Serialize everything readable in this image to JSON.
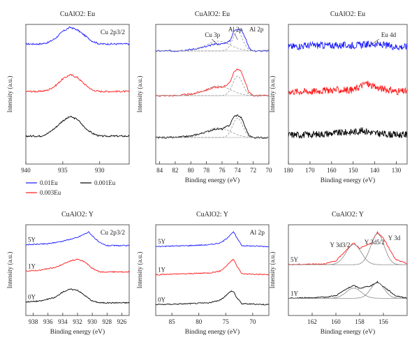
{
  "figure": {
    "ylabel": "Intensity (a.u.)",
    "xlabel": "Binding energy (eV)"
  },
  "legend": [
    {
      "label": "0.01Eu",
      "color": "#1a1aff"
    },
    {
      "label": "0.003Eu",
      "color": "#ff1a1a"
    },
    {
      "label": "0.001Eu",
      "color": "#000000"
    }
  ],
  "chart_data": [
    {
      "id": "p1",
      "type": "line",
      "title": "CuAlO2: Eu",
      "peak_label": "Cu 2p3/2",
      "xlim": [
        940,
        926
      ],
      "xticks": [
        940,
        935,
        930
      ],
      "show_xlabel": false,
      "series": [
        {
          "name": "0.01Eu",
          "color": "#1a1aff",
          "points": [
            [
              940,
              0.86
            ],
            [
              938,
              0.86
            ],
            [
              937,
              0.87
            ],
            [
              936,
              0.9
            ],
            [
              935,
              0.95
            ],
            [
              934,
              0.98
            ],
            [
              933,
              0.96
            ],
            [
              932,
              0.92
            ],
            [
              931,
              0.88
            ],
            [
              930,
              0.86
            ],
            [
              928,
              0.86
            ],
            [
              926,
              0.86
            ]
          ]
        },
        {
          "name": "0.003Eu",
          "color": "#ff1a1a",
          "points": [
            [
              940,
              0.52
            ],
            [
              938,
              0.52
            ],
            [
              937,
              0.53
            ],
            [
              936,
              0.56
            ],
            [
              935,
              0.61
            ],
            [
              934,
              0.64
            ],
            [
              933,
              0.62
            ],
            [
              932,
              0.57
            ],
            [
              931,
              0.53
            ],
            [
              930,
              0.52
            ],
            [
              928,
              0.52
            ],
            [
              926,
              0.52
            ]
          ]
        },
        {
          "name": "0.001Eu",
          "color": "#000000",
          "points": [
            [
              940,
              0.2
            ],
            [
              938,
              0.2
            ],
            [
              937,
              0.22
            ],
            [
              936,
              0.26
            ],
            [
              935,
              0.31
            ],
            [
              934,
              0.34
            ],
            [
              933,
              0.32
            ],
            [
              932,
              0.26
            ],
            [
              931,
              0.22
            ],
            [
              930,
              0.2
            ],
            [
              928,
              0.2
            ],
            [
              926,
              0.2
            ]
          ]
        }
      ]
    },
    {
      "id": "p2",
      "type": "line",
      "title": "CuAlO2: Eu",
      "annotations": [
        "Cu 3p",
        "Al 2p",
        "Al 2p"
      ],
      "xlim": [
        84.5,
        70
      ],
      "xticks": [
        84,
        82,
        80,
        78,
        76,
        74,
        72,
        70
      ],
      "show_xlabel": true,
      "series": [
        {
          "name": "0.01Eu",
          "color": "#1a1aff",
          "points": [
            [
              84.5,
              0.81
            ],
            [
              82,
              0.81
            ],
            [
              80,
              0.82
            ],
            [
              78,
              0.84
            ],
            [
              77,
              0.86
            ],
            [
              76,
              0.86
            ],
            [
              75,
              0.88
            ],
            [
              74.5,
              0.95
            ],
            [
              74,
              0.97
            ],
            [
              73.5,
              0.96
            ],
            [
              73,
              0.9
            ],
            [
              72.5,
              0.83
            ],
            [
              72,
              0.81
            ],
            [
              70,
              0.81
            ]
          ]
        },
        {
          "name": "0.003Eu",
          "color": "#ff1a1a",
          "points": [
            [
              84.5,
              0.49
            ],
            [
              82,
              0.49
            ],
            [
              80,
              0.5
            ],
            [
              78,
              0.53
            ],
            [
              77,
              0.55
            ],
            [
              76,
              0.55
            ],
            [
              75,
              0.58
            ],
            [
              74.5,
              0.66
            ],
            [
              74,
              0.68
            ],
            [
              73.5,
              0.66
            ],
            [
              73,
              0.58
            ],
            [
              72.5,
              0.51
            ],
            [
              72,
              0.49
            ],
            [
              70,
              0.49
            ]
          ]
        },
        {
          "name": "0.001Eu",
          "color": "#000000",
          "points": [
            [
              84.5,
              0.19
            ],
            [
              82,
              0.19
            ],
            [
              80,
              0.2
            ],
            [
              78,
              0.23
            ],
            [
              77,
              0.25
            ],
            [
              76,
              0.25
            ],
            [
              75,
              0.28
            ],
            [
              74.5,
              0.34
            ],
            [
              74,
              0.35
            ],
            [
              73.5,
              0.33
            ],
            [
              73,
              0.26
            ],
            [
              72.5,
              0.2
            ],
            [
              72,
              0.19
            ],
            [
              70,
              0.19
            ]
          ]
        }
      ]
    },
    {
      "id": "p3",
      "type": "line",
      "title": "CuAlO2: Eu",
      "annotations": [
        "Eu 4d"
      ],
      "xlim": [
        180,
        125
      ],
      "xticks": [
        180,
        170,
        160,
        150,
        140,
        130
      ],
      "show_xlabel": true,
      "series": [
        {
          "name": "0.01Eu",
          "color": "#1a1aff",
          "points": [
            [
              180,
              0.84
            ],
            [
              170,
              0.85
            ],
            [
              160,
              0.85
            ],
            [
              150,
              0.85
            ],
            [
              140,
              0.86
            ],
            [
              130,
              0.84
            ],
            [
              125,
              0.84
            ]
          ]
        },
        {
          "name": "0.003Eu",
          "color": "#ff1a1a",
          "points": [
            [
              180,
              0.52
            ],
            [
              170,
              0.52
            ],
            [
              160,
              0.53
            ],
            [
              150,
              0.53
            ],
            [
              144,
              0.58
            ],
            [
              140,
              0.55
            ],
            [
              130,
              0.52
            ],
            [
              125,
              0.52
            ]
          ]
        },
        {
          "name": "0.001Eu",
          "color": "#000000",
          "points": [
            [
              180,
              0.21
            ],
            [
              170,
              0.21
            ],
            [
              160,
              0.22
            ],
            [
              150,
              0.23
            ],
            [
              145,
              0.24
            ],
            [
              140,
              0.22
            ],
            [
              130,
              0.21
            ],
            [
              125,
              0.21
            ]
          ]
        }
      ]
    },
    {
      "id": "p4",
      "type": "line",
      "title": "CuAlO2: Y",
      "peak_label": "Cu 2p3/2",
      "xlim": [
        939,
        925
      ],
      "xticks": [
        938,
        936,
        934,
        932,
        930,
        928,
        926
      ],
      "show_xlabel": true,
      "series": [
        {
          "name": "5Y",
          "color": "#1a1aff",
          "points": [
            [
              939,
              0.78
            ],
            [
              936,
              0.79
            ],
            [
              934,
              0.82
            ],
            [
              932,
              0.86
            ],
            [
              931,
              0.9
            ],
            [
              930.5,
              0.92
            ],
            [
              930,
              0.88
            ],
            [
              929,
              0.8
            ],
            [
              928,
              0.77
            ],
            [
              925,
              0.77
            ]
          ]
        },
        {
          "name": "1Y",
          "color": "#ff1a1a",
          "points": [
            [
              939,
              0.49
            ],
            [
              937,
              0.5
            ],
            [
              935,
              0.53
            ],
            [
              933,
              0.6
            ],
            [
              932,
              0.62
            ],
            [
              931,
              0.59
            ],
            [
              930,
              0.52
            ],
            [
              929,
              0.48
            ],
            [
              925,
              0.48
            ]
          ]
        },
        {
          "name": "0Y",
          "color": "#000000",
          "points": [
            [
              939,
              0.15
            ],
            [
              937,
              0.16
            ],
            [
              935,
              0.2
            ],
            [
              934,
              0.26
            ],
            [
              933,
              0.29
            ],
            [
              932,
              0.28
            ],
            [
              931,
              0.22
            ],
            [
              930,
              0.16
            ],
            [
              929,
              0.14
            ],
            [
              925,
              0.14
            ]
          ]
        }
      ],
      "sample_labels": [
        "5Y",
        "1Y",
        "0Y"
      ]
    },
    {
      "id": "p5",
      "type": "line",
      "title": "CuAlO2: Y",
      "peak_label": "Al 2p",
      "xlim": [
        88,
        67
      ],
      "xticks": [
        85,
        80,
        75,
        70
      ],
      "show_xlabel": true,
      "series": [
        {
          "name": "5Y",
          "color": "#1a1aff",
          "points": [
            [
              88,
              0.76
            ],
            [
              82,
              0.77
            ],
            [
              78,
              0.78
            ],
            [
              76,
              0.8
            ],
            [
              75,
              0.84
            ],
            [
              74,
              0.9
            ],
            [
              73.5,
              0.92
            ],
            [
              73,
              0.86
            ],
            [
              72,
              0.77
            ],
            [
              67,
              0.76
            ]
          ]
        },
        {
          "name": "1Y",
          "color": "#ff1a1a",
          "points": [
            [
              88,
              0.45
            ],
            [
              82,
              0.46
            ],
            [
              78,
              0.47
            ],
            [
              76,
              0.49
            ],
            [
              75,
              0.54
            ],
            [
              74,
              0.6
            ],
            [
              73.5,
              0.62
            ],
            [
              73,
              0.55
            ],
            [
              72,
              0.46
            ],
            [
              67,
              0.45
            ]
          ]
        },
        {
          "name": "0Y",
          "color": "#000000",
          "points": [
            [
              88,
              0.12
            ],
            [
              82,
              0.13
            ],
            [
              78,
              0.14
            ],
            [
              76,
              0.17
            ],
            [
              75,
              0.22
            ],
            [
              74,
              0.27
            ],
            [
              73.5,
              0.26
            ],
            [
              73,
              0.2
            ],
            [
              72,
              0.13
            ],
            [
              67,
              0.12
            ]
          ]
        }
      ],
      "sample_labels": [
        "5Y",
        "1Y",
        "0Y"
      ]
    },
    {
      "id": "p6",
      "type": "line",
      "title": "CuAlO2: Y",
      "annotations": [
        "Y 3d3/2",
        "Y 3d5/2",
        "Y 3d"
      ],
      "xlim": [
        164,
        154
      ],
      "xticks": [
        162,
        160,
        158,
        156
      ],
      "show_xlabel": true,
      "series": [
        {
          "name": "5Y",
          "color": "#ff1a1a",
          "points": [
            [
              164,
              0.56
            ],
            [
              161,
              0.57
            ],
            [
              160,
              0.6
            ],
            [
              159,
              0.74
            ],
            [
              158.5,
              0.8
            ],
            [
              158,
              0.74
            ],
            [
              157,
              0.8
            ],
            [
              156.5,
              0.92
            ],
            [
              156,
              0.85
            ],
            [
              155,
              0.62
            ],
            [
              154,
              0.57
            ]
          ]
        },
        {
          "name": "1Y",
          "color": "#000000",
          "points": [
            [
              164,
              0.19
            ],
            [
              161,
              0.2
            ],
            [
              160,
              0.22
            ],
            [
              159,
              0.3
            ],
            [
              158.5,
              0.33
            ],
            [
              158,
              0.3
            ],
            [
              157,
              0.33
            ],
            [
              156.5,
              0.37
            ],
            [
              156,
              0.32
            ],
            [
              155,
              0.22
            ],
            [
              154,
              0.19
            ]
          ]
        }
      ],
      "sample_labels": [
        "5Y",
        "1Y"
      ]
    }
  ]
}
